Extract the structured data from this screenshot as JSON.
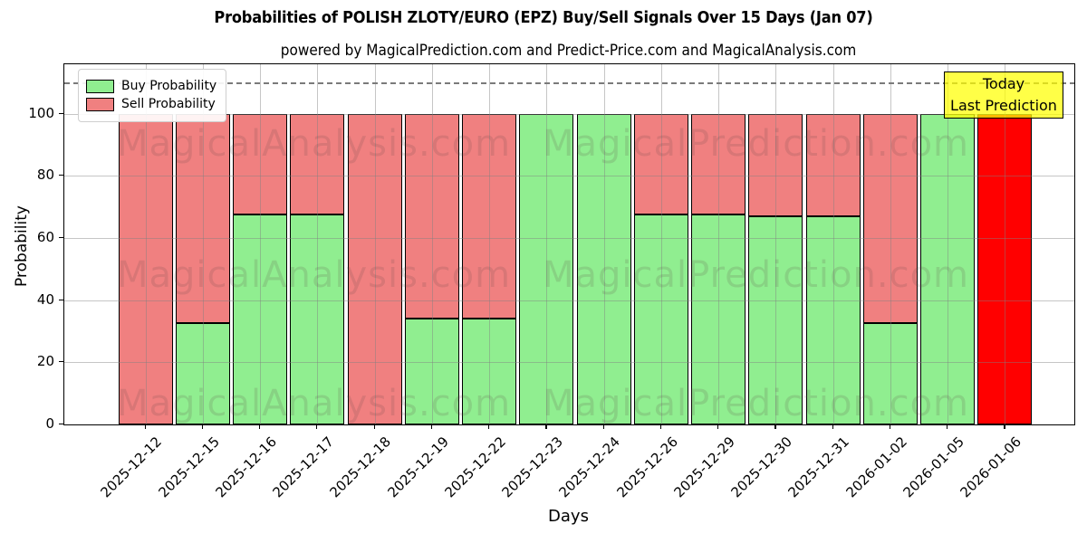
{
  "figure": {
    "title": "Probabilities of POLISH ZLOTY/EURO (EPZ) Buy/Sell Signals Over 15 Days (Jan 07)",
    "subtitle": "powered by MagicalPrediction.com and Predict-Price.com and MagicalAnalysis.com",
    "watermark_left": "MagicalAnalysis.com",
    "watermark_right": "MagicalPrediction.com"
  },
  "axes": {
    "ylabel": "Probability",
    "xlabel": "Days",
    "yticks": [
      0,
      20,
      40,
      60,
      80,
      100
    ],
    "ylim": [
      0,
      116
    ],
    "dashed_line_y": 110,
    "grid": true
  },
  "legend": {
    "items": [
      {
        "label": "Buy Probability",
        "color": "#90ee90"
      },
      {
        "label": "Sell Probability",
        "color": "#f08080"
      }
    ]
  },
  "annotation": {
    "line1": "Today",
    "line2": "Last Prediction",
    "bg_color": "#ffff00"
  },
  "colors": {
    "buy": "#90ee90",
    "sell": "#f08080",
    "last_bar_sell": "#ff0000",
    "grid": "#808080",
    "watermark": "rgba(95,70,70,0.16)"
  },
  "chart_data": {
    "type": "bar",
    "stacked": true,
    "title": "Probabilities of POLISH ZLOTY/EURO (EPZ) Buy/Sell Signals Over 15 Days (Jan 07)",
    "xlabel": "Days",
    "ylabel": "Probability",
    "ylim": [
      0,
      116
    ],
    "grid": true,
    "legend_position": "upper left",
    "dashed_guide_y": 110,
    "categories": [
      "2025-12-12",
      "2025-12-15",
      "2025-12-16",
      "2025-12-17",
      "2025-12-18",
      "2025-12-19",
      "2025-12-22",
      "2025-12-23",
      "2025-12-24",
      "2025-12-26",
      "2025-12-29",
      "2025-12-30",
      "2025-12-31",
      "2026-01-02",
      "2026-01-05",
      "2026-01-06"
    ],
    "series": [
      {
        "name": "Buy Probability",
        "color": "#90ee90",
        "values": [
          0,
          32.5,
          67.5,
          67.5,
          0,
          34,
          34,
          100,
          100,
          67.5,
          67.5,
          67,
          67,
          32.5,
          100,
          0
        ]
      },
      {
        "name": "Sell Probability",
        "color": "#f08080",
        "values": [
          100,
          67.5,
          32.5,
          32.5,
          100,
          66,
          66,
          0,
          0,
          32.5,
          32.5,
          33,
          33,
          67.5,
          0,
          100
        ]
      }
    ],
    "special_bars": [
      {
        "index": 15,
        "sell_color": "#ff0000",
        "note": "Today / Last Prediction"
      }
    ]
  }
}
